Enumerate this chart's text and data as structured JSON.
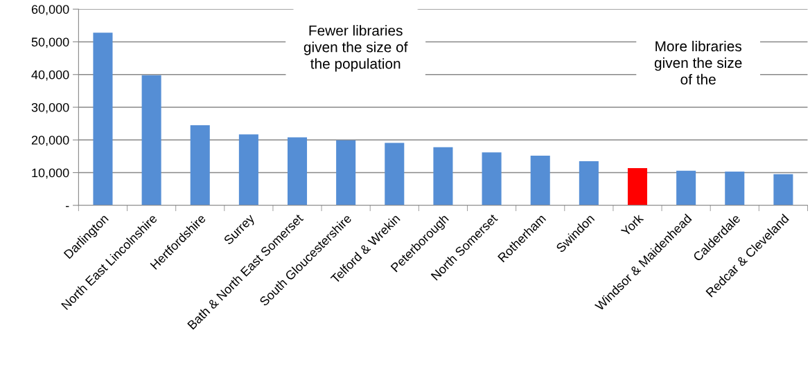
{
  "chart_data": {
    "type": "bar",
    "categories": [
      "Darlington",
      "North East Lincolnshire",
      "Hertfordshire",
      "Surrey",
      "Bath & North East Somerset",
      "South Gloucestershire",
      "Telford & Wrekin",
      "Peterborough",
      "North Somerset",
      "Rotherham",
      "Swindon",
      "York",
      "Windsor & Maidenhead",
      "Calderdale",
      "Redcar & Cleveland"
    ],
    "values": [
      52800,
      39800,
      24500,
      21700,
      20800,
      19900,
      19100,
      17800,
      16200,
      15200,
      13500,
      11400,
      10600,
      10300,
      9500
    ],
    "colors": [
      "#558ed5",
      "#558ed5",
      "#558ed5",
      "#558ed5",
      "#558ed5",
      "#558ed5",
      "#558ed5",
      "#558ed5",
      "#558ed5",
      "#558ed5",
      "#558ed5",
      "#ff0000",
      "#558ed5",
      "#558ed5",
      "#558ed5"
    ],
    "ylim": [
      0,
      60000
    ],
    "yticks": [
      {
        "value": 0,
        "label": "-"
      },
      {
        "value": 10000,
        "label": "10,000"
      },
      {
        "value": 20000,
        "label": "20,000"
      },
      {
        "value": 30000,
        "label": "30,000"
      },
      {
        "value": 40000,
        "label": "40,000"
      },
      {
        "value": 50000,
        "label": "50,000"
      },
      {
        "value": 60000,
        "label": "60,000"
      }
    ],
    "grid": "y",
    "annotations": [
      "Fewer libraries\ngiven the size of\nthe population",
      "More libraries\ngiven the size\nof the"
    ]
  }
}
